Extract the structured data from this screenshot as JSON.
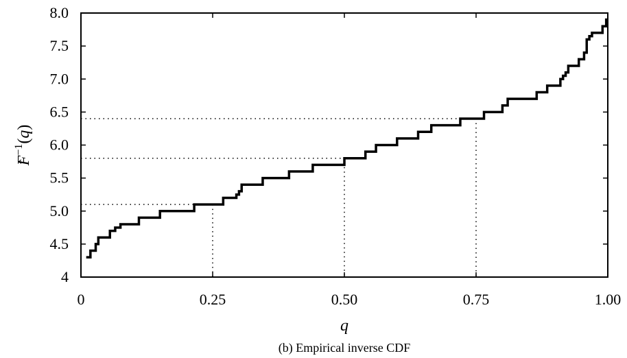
{
  "chart_data": {
    "type": "line",
    "step": true,
    "caption": "(b) Empirical inverse CDF",
    "xlabel": "q",
    "ylabel_parts": {
      "base": "F",
      "hat": "ˆ",
      "sup": "−1",
      "arg_open": "(",
      "arg": "q",
      "arg_close": ")"
    },
    "xlim": [
      0,
      1
    ],
    "ylim": [
      4,
      8
    ],
    "xticks": [
      0,
      0.25,
      0.5,
      0.75,
      1
    ],
    "xtick_labels": [
      "0",
      "0.25",
      "0.50",
      "0.75",
      "1.00"
    ],
    "yticks": [
      4,
      4.5,
      5,
      5.5,
      6,
      6.5,
      7,
      7.5,
      8
    ],
    "ytick_labels": [
      "4",
      "4.5",
      "5.0",
      "5.5",
      "6.0",
      "6.5",
      "7.0",
      "7.5",
      "8.0"
    ],
    "grid": false,
    "series": [
      {
        "x": [
          0.01,
          0.018,
          0.028,
          0.033,
          0.055,
          0.065,
          0.075,
          0.11,
          0.15,
          0.215,
          0.27,
          0.295,
          0.3,
          0.305,
          0.345,
          0.395,
          0.44,
          0.5,
          0.54,
          0.56,
          0.6,
          0.64,
          0.665,
          0.72,
          0.765,
          0.8,
          0.81,
          0.865,
          0.885,
          0.91,
          0.915,
          0.92,
          0.925,
          0.935,
          0.945,
          0.955,
          0.96,
          0.965,
          0.97,
          0.99,
          0.997
        ],
        "y": [
          4.3,
          4.4,
          4.5,
          4.6,
          4.7,
          4.75,
          4.8,
          4.9,
          5.0,
          5.1,
          5.2,
          5.25,
          5.3,
          5.4,
          5.5,
          5.6,
          5.7,
          5.8,
          5.9,
          6.0,
          6.1,
          6.2,
          6.3,
          6.4,
          6.5,
          6.6,
          6.7,
          6.8,
          6.9,
          7.0,
          7.05,
          7.1,
          7.2,
          7.2,
          7.3,
          7.4,
          7.6,
          7.65,
          7.7,
          7.8,
          7.9
        ]
      }
    ],
    "quantile_guides": [
      {
        "q": 0.25,
        "value": 5.1
      },
      {
        "q": 0.5,
        "value": 5.8
      },
      {
        "q": 0.75,
        "value": 6.4
      }
    ]
  }
}
